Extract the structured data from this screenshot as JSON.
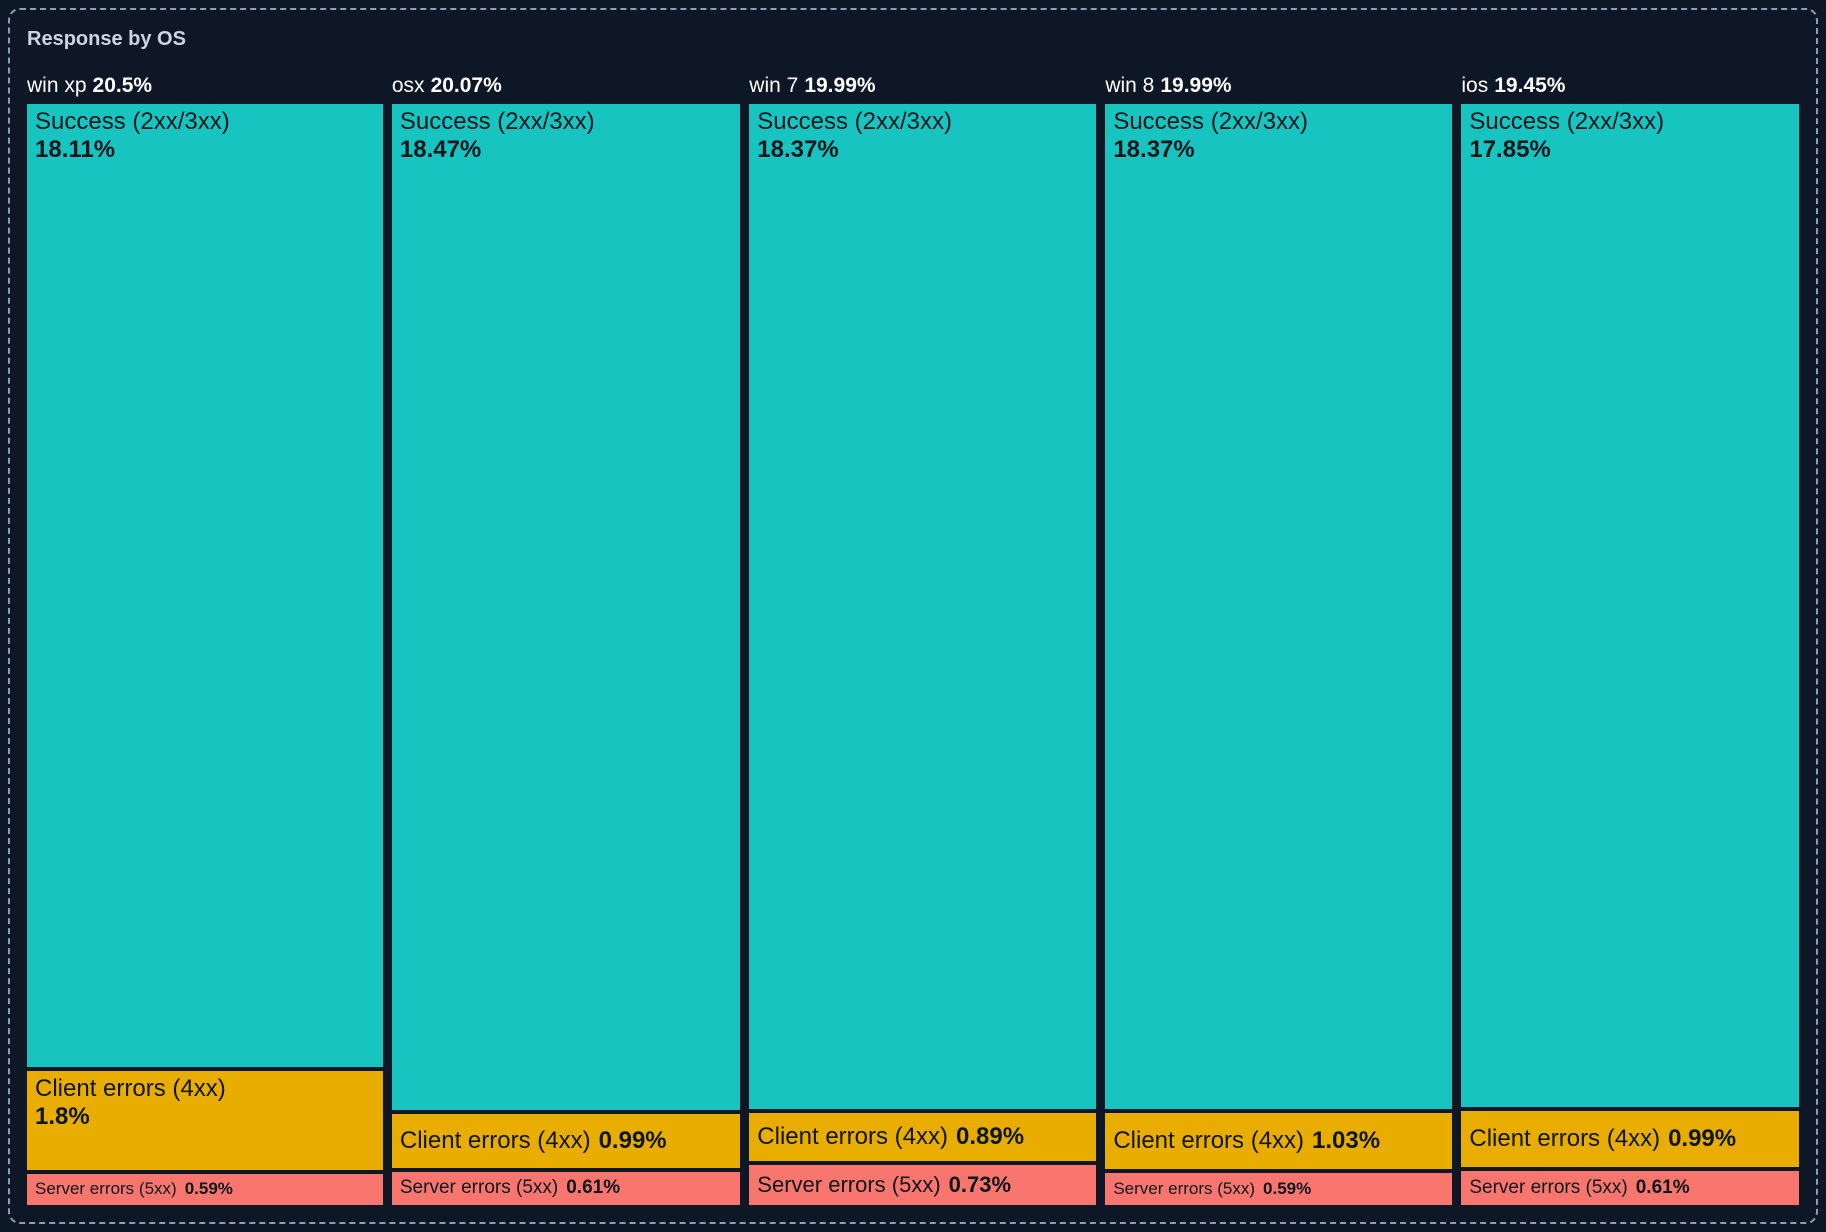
{
  "panel": {
    "title": "Response by OS"
  },
  "colors": {
    "background": "#0d1726",
    "panel_border": "#8b9fba",
    "title_text": "#ccd6e2",
    "header_text": "#ffffff",
    "segment_text": "#0e161e",
    "success": "#17c4c0",
    "client_errors": "#e9ad00",
    "server_errors": "#f8766d"
  },
  "chart_data": {
    "type": "bar",
    "variant": "marimekko-mosaic",
    "title": "Response by OS",
    "grid": false,
    "legend_position": "none",
    "axes": "none",
    "categories": [
      "win xp",
      "osx",
      "win 7",
      "win 8",
      "ios"
    ],
    "category_total_labels": [
      "20.5%",
      "20.07%",
      "19.99%",
      "19.99%",
      "19.45%"
    ],
    "series": [
      {
        "name": "Success (2xx/3xx)",
        "color": "#17c4c0",
        "values": [
          18.11,
          18.47,
          18.37,
          18.37,
          17.85
        ]
      },
      {
        "name": "Client errors (4xx)",
        "color": "#e9ad00",
        "values": [
          1.8,
          0.99,
          0.89,
          1.03,
          0.99
        ]
      },
      {
        "name": "Server errors (5xx)",
        "color": "#f8766d",
        "values": [
          0.59,
          0.61,
          0.73,
          0.59,
          0.61
        ]
      }
    ],
    "columns": [
      {
        "os": "win xp",
        "total": 20.5,
        "total_label": "20.5%",
        "segments": [
          {
            "name": "Success (2xx/3xx)",
            "value": 18.11,
            "label": "18.11%"
          },
          {
            "name": "Client errors (4xx)",
            "value": 1.8,
            "label": "1.8%"
          },
          {
            "name": "Server errors (5xx)",
            "value": 0.59,
            "label": "0.59%"
          }
        ]
      },
      {
        "os": "osx",
        "total": 20.07,
        "total_label": "20.07%",
        "segments": [
          {
            "name": "Success (2xx/3xx)",
            "value": 18.47,
            "label": "18.47%"
          },
          {
            "name": "Client errors (4xx)",
            "value": 0.99,
            "label": "0.99%"
          },
          {
            "name": "Server errors (5xx)",
            "value": 0.61,
            "label": "0.61%"
          }
        ]
      },
      {
        "os": "win 7",
        "total": 19.99,
        "total_label": "19.99%",
        "segments": [
          {
            "name": "Success (2xx/3xx)",
            "value": 18.37,
            "label": "18.37%"
          },
          {
            "name": "Client errors (4xx)",
            "value": 0.89,
            "label": "0.89%"
          },
          {
            "name": "Server errors (5xx)",
            "value": 0.73,
            "label": "0.73%"
          }
        ]
      },
      {
        "os": "win 8",
        "total": 19.99,
        "total_label": "19.99%",
        "segments": [
          {
            "name": "Success (2xx/3xx)",
            "value": 18.37,
            "label": "18.37%"
          },
          {
            "name": "Client errors (4xx)",
            "value": 1.03,
            "label": "1.03%"
          },
          {
            "name": "Server errors (5xx)",
            "value": 0.59,
            "label": "0.59%"
          }
        ]
      },
      {
        "os": "ios",
        "total": 19.45,
        "total_label": "19.45%",
        "segments": [
          {
            "name": "Success (2xx/3xx)",
            "value": 17.85,
            "label": "17.85%"
          },
          {
            "name": "Client errors (4xx)",
            "value": 0.99,
            "label": "0.99%"
          },
          {
            "name": "Server errors (5xx)",
            "value": 0.61,
            "label": "0.61%"
          }
        ]
      }
    ]
  }
}
